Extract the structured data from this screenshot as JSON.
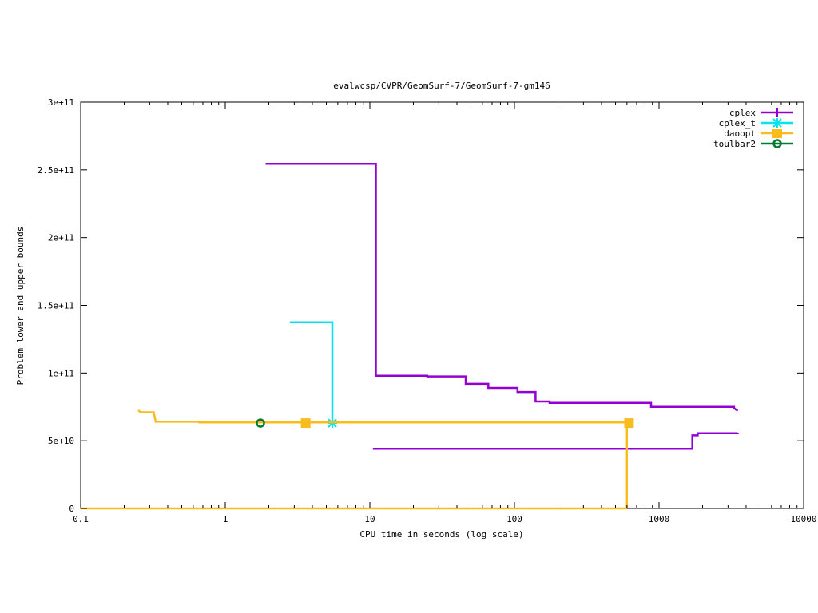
{
  "chart_data": {
    "type": "line",
    "title": "evalwcsp/CVPR/GeomSurf-7/GeomSurf-7-gm146",
    "xlabel": "CPU time in seconds (log scale)",
    "ylabel": "Problem lower and upper bounds",
    "xscale": "log",
    "xlim": [
      0.1,
      10000
    ],
    "ylim": [
      0,
      300000000000
    ],
    "grid": false,
    "legend_position": "top-right",
    "x_ticks": [
      {
        "value": 0.1,
        "label": "0.1"
      },
      {
        "value": 1,
        "label": "1"
      },
      {
        "value": 10,
        "label": "10"
      },
      {
        "value": 100,
        "label": "100"
      },
      {
        "value": 1000,
        "label": "1000"
      },
      {
        "value": 10000,
        "label": "10000"
      }
    ],
    "y_ticks": [
      {
        "value": 0,
        "label": "0"
      },
      {
        "value": 50000000000,
        "label": "5e+10"
      },
      {
        "value": 100000000000,
        "label": "1e+11"
      },
      {
        "value": 150000000000,
        "label": "1.5e+11"
      },
      {
        "value": 200000000000,
        "label": "2e+11"
      },
      {
        "value": 250000000000,
        "label": "2.5e+11"
      },
      {
        "value": 300000000000,
        "label": "3e+11"
      }
    ],
    "series": [
      {
        "name": "cplex",
        "color": "#9400d3",
        "marker": "plus",
        "lines": [
          [
            [
              1.9,
              254500000000
            ],
            [
              11.0,
              254500000000
            ],
            [
              11.0,
              98000000000
            ],
            [
              25,
              98000000000
            ],
            [
              25,
              97500000000
            ],
            [
              46,
              97500000000
            ],
            [
              46,
              92000000000
            ],
            [
              66,
              92000000000
            ],
            [
              66,
              89000000000
            ],
            [
              105,
              89000000000
            ],
            [
              105,
              86000000000
            ],
            [
              140,
              86000000000
            ],
            [
              140,
              79000000000
            ],
            [
              175,
              79000000000
            ],
            [
              175,
              78000000000
            ],
            [
              880,
              78000000000
            ],
            [
              880,
              75000000000
            ],
            [
              3300,
              75000000000
            ],
            [
              3300,
              74000000000
            ],
            [
              3500,
              72000000000
            ]
          ],
          [
            [
              10.5,
              44000000000
            ],
            [
              1700,
              44000000000
            ],
            [
              1700,
              54000000000
            ],
            [
              1850,
              54000000000
            ],
            [
              1850,
              55500000000
            ],
            [
              3500,
              55500000000
            ],
            [
              3500,
              56000000000
            ]
          ]
        ],
        "markers": []
      },
      {
        "name": "cplex_t",
        "color": "#00e5ee",
        "marker": "star",
        "lines": [
          [
            [
              2.8,
              137500000000
            ],
            [
              5.5,
              137500000000
            ],
            [
              5.5,
              63000000000
            ]
          ]
        ],
        "markers": [
          [
            5.5,
            63000000000
          ]
        ]
      },
      {
        "name": "daoopt",
        "color": "#f8bc1e",
        "marker": "filled-square",
        "lines": [
          [
            [
              0.25,
              72500000000
            ],
            [
              0.26,
              71000000000
            ],
            [
              0.32,
              71000000000
            ],
            [
              0.33,
              64000000000
            ],
            [
              0.65,
              64000000000
            ],
            [
              0.66,
              63500000000
            ],
            [
              600,
              63500000000
            ],
            [
              600,
              0
            ]
          ],
          [
            [
              0.1,
              0
            ],
            [
              600,
              0
            ]
          ]
        ],
        "markers": [
          [
            3.6,
            63000000000
          ],
          [
            620,
            63000000000
          ]
        ]
      },
      {
        "name": "toulbar2",
        "color": "#007a33",
        "marker": "open-circle",
        "lines": [],
        "markers": [
          [
            1.75,
            63000000000
          ]
        ]
      }
    ]
  }
}
